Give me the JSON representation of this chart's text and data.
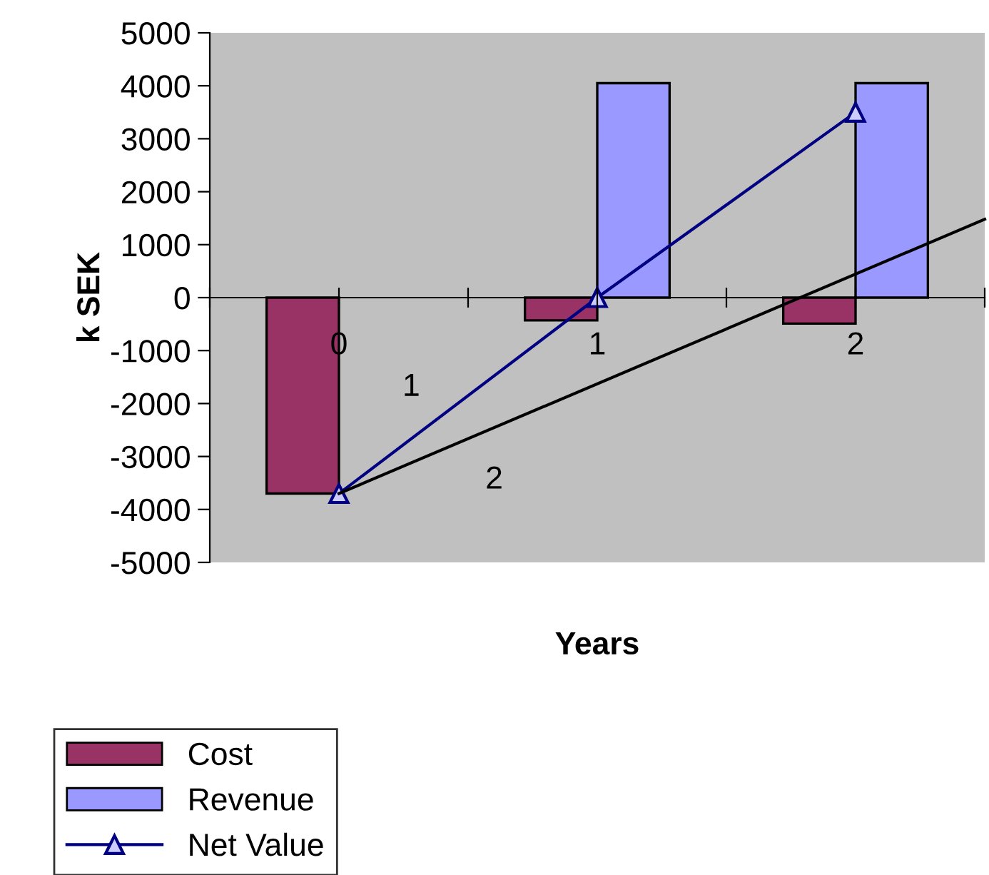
{
  "chart_data": {
    "type": "bar",
    "xlabel": "Years",
    "ylabel": "k SEK",
    "x": [
      0,
      1,
      2
    ],
    "xlim": [
      -0.5,
      2.5
    ],
    "xticks": [
      {
        "value": -0.5,
        "label": null
      },
      {
        "value": 0,
        "label": "0"
      },
      {
        "value": 0.5,
        "label": null
      },
      {
        "value": 1,
        "label": "1"
      },
      {
        "value": 1.5,
        "label": null
      },
      {
        "value": 2,
        "label": "2"
      },
      {
        "value": 2.5,
        "label": null
      }
    ],
    "ylim": [
      -5000,
      5000
    ],
    "yticks": [
      -5000,
      -4000,
      -3000,
      -2000,
      -1000,
      0,
      1000,
      2000,
      3000,
      4000,
      5000
    ],
    "series": [
      {
        "name": "Cost",
        "color": "#993366",
        "values": [
          -3700,
          -430,
          -490
        ]
      },
      {
        "name": "Revenue",
        "color": "#9999ff",
        "values": [
          null,
          4050,
          4050
        ]
      },
      {
        "name": "Net Value",
        "type": "line",
        "color": "#000080",
        "marker": "triangle",
        "values": [
          -3700,
          0,
          3500
        ]
      },
      {
        "type": "line",
        "color": "#000000",
        "x": [
          0,
          2.5
        ],
        "values": [
          -3700,
          1480
        ]
      }
    ],
    "annotations": [
      "1",
      "2"
    ],
    "grid": false,
    "legend": "bottom left"
  }
}
